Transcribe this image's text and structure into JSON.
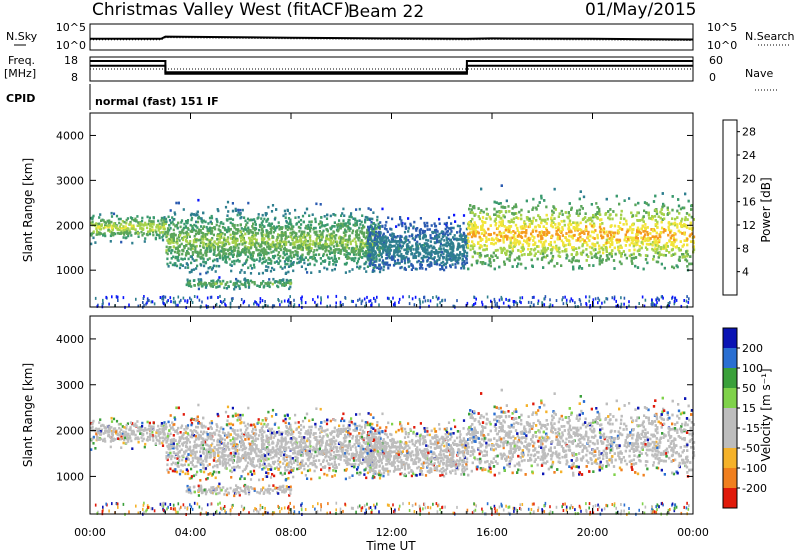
{
  "header": {
    "title": "Christmas Valley West (fitACF)",
    "beam": "Beam 22",
    "date": "01/May/2015"
  },
  "side_labels": {
    "nsky": "N.Sky",
    "freq": "Freq.",
    "mhz": "[MHz]",
    "cpid": "CPID",
    "nsearch": "N.Search",
    "nave": "Nave"
  },
  "cpid_text": "normal (fast) 151 IF",
  "colors": {
    "power_scale": [
      "#0a14ff",
      "#2a5ab0",
      "#2f7f8f",
      "#3a9a6e",
      "#5aa55a",
      "#a6d24a",
      "#f2e53a",
      "#f59b1e",
      "#ef5a16",
      "#e01a0a"
    ],
    "velocity_scale": [
      "#e01a0a",
      "#f07f1e",
      "#f5b22a",
      "#bdbdbd",
      "#bdbdbd",
      "#7fd24a",
      "#3aa03a",
      "#2a6fd2",
      "#0a14b4"
    ]
  },
  "chart_data": [
    {
      "type": "line",
      "name": "noise",
      "left_label": "N.Sky",
      "right_label": "N.Search",
      "left_ticks": [
        "10^5",
        "10^0"
      ],
      "right_ticks": [
        "10^5",
        "10^0"
      ],
      "x": [
        "00:00",
        "02:50",
        "03:00",
        "08:00",
        "12:00",
        "15:00",
        "16:00",
        "20:00",
        "24:00"
      ],
      "y": [
        2.0,
        2.0,
        2.6,
        2.3,
        2.1,
        2.0,
        2.1,
        2.0,
        1.8
      ]
    },
    {
      "type": "line",
      "name": "frequency",
      "left_ticks": [
        "18",
        "8"
      ],
      "right_ticks": [
        "60",
        "0"
      ],
      "series": [
        {
          "x": [
            "00:00",
            "03:00",
            "03:00",
            "15:00",
            "15:00",
            "24:00"
          ],
          "y": [
            15,
            15,
            11,
            11,
            15,
            15
          ]
        },
        {
          "x": [
            "00:00",
            "24:00"
          ],
          "y": [
            13,
            13
          ]
        },
        {
          "x": [
            "00:00",
            "03:00",
            "03:00",
            "15:00",
            "15:00",
            "24:00"
          ],
          "y": [
            18,
            18,
            10,
            10,
            18,
            18
          ]
        }
      ]
    },
    {
      "type": "heatmap",
      "name": "power",
      "ylabel": "Slant Range [km]",
      "xlim": [
        0,
        24
      ],
      "ylim": [
        180,
        4500
      ],
      "yticks": [
        1000,
        2000,
        3000,
        4000
      ],
      "colorbar_label": "Power [dB]",
      "colorbar_ticks": [
        4,
        8,
        12,
        16,
        20,
        24,
        28
      ],
      "colorbar_range": [
        0,
        30
      ],
      "features": [
        {
          "t": [
            0,
            3
          ],
          "range_km": [
            1500,
            2400
          ],
          "core_km": 1950,
          "level_db": 18
        },
        {
          "t": [
            3,
            11.5
          ],
          "range_km": [
            900,
            3000
          ],
          "core_km": 1650,
          "level_db": 16
        },
        {
          "t": [
            3.8,
            8
          ],
          "range_km": [
            550,
            900
          ],
          "core_km": 700,
          "level_db": 14
        },
        {
          "t": [
            11,
            15
          ],
          "range_km": [
            1000,
            3000
          ],
          "core_km": 1500,
          "level_db": 8
        },
        {
          "t": [
            15,
            24
          ],
          "range_km": [
            1000,
            3500
          ],
          "core_km": 1800,
          "level_db": 22
        }
      ]
    },
    {
      "type": "heatmap",
      "name": "velocity",
      "ylabel": "Slant Range [km]",
      "xlabel": "Time UT",
      "xticks": [
        "00:00",
        "04:00",
        "08:00",
        "12:00",
        "16:00",
        "20:00",
        "00:00"
      ],
      "xlim": [
        0,
        24
      ],
      "ylim": [
        180,
        4500
      ],
      "yticks": [
        1000,
        2000,
        3000,
        4000
      ],
      "colorbar_label": "Velocity [m s⁻¹]",
      "colorbar_ticks": [
        200,
        100,
        50,
        15,
        -15,
        -50,
        -100,
        -200
      ]
    }
  ]
}
